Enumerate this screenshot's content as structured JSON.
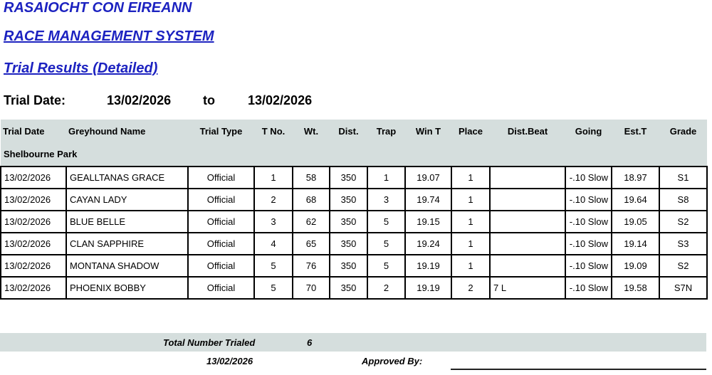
{
  "header": {
    "org": "RASAIOCHT CON EIREANN",
    "system": "RACE MANAGEMENT SYSTEM",
    "report": "Trial Results (Detailed)"
  },
  "date_range": {
    "label": "Trial Date:",
    "from": "13/02/2026",
    "to_label": "to",
    "to": "13/02/2026"
  },
  "table": {
    "columns": [
      "Trial Date",
      "Greyhound Name",
      "Trial Type",
      "T No.",
      "Wt.",
      "Dist.",
      "Trap",
      "Win T",
      "Place",
      "Dist.Beat",
      "Going",
      "Est.T",
      "Grade"
    ],
    "section": "Shelbourne Park",
    "rows": [
      [
        "13/02/2026",
        "GEALLTANAS GRACE",
        "Official",
        "1",
        "58",
        "350",
        "1",
        "19.07",
        "1",
        "",
        "-.10 Slow",
        "18.97",
        "S1"
      ],
      [
        "13/02/2026",
        "CAYAN LADY",
        "Official",
        "2",
        "68",
        "350",
        "3",
        "19.74",
        "1",
        "",
        "-.10 Slow",
        "19.64",
        "S8"
      ],
      [
        "13/02/2026",
        "BLUE BELLE",
        "Official",
        "3",
        "62",
        "350",
        "5",
        "19.15",
        "1",
        "",
        "-.10 Slow",
        "19.05",
        "S2"
      ],
      [
        "13/02/2026",
        "CLAN SAPPHIRE",
        "Official",
        "4",
        "65",
        "350",
        "5",
        "19.24",
        "1",
        "",
        "-.10 Slow",
        "19.14",
        "S3"
      ],
      [
        "13/02/2026",
        "MONTANA SHADOW",
        "Official",
        "5",
        "76",
        "350",
        "5",
        "19.19",
        "1",
        "",
        "-.10 Slow",
        "19.09",
        "S2"
      ],
      [
        "13/02/2026",
        "PHOENIX BOBBY",
        "Official",
        "5",
        "70",
        "350",
        "2",
        "19.19",
        "2",
        "7 L",
        "-.10 Slow",
        "19.58",
        "S7N"
      ]
    ]
  },
  "footer": {
    "total_label": "Total Number Trialed",
    "total": "6",
    "date": "13/02/2026",
    "approved_label": "Approved By:"
  }
}
